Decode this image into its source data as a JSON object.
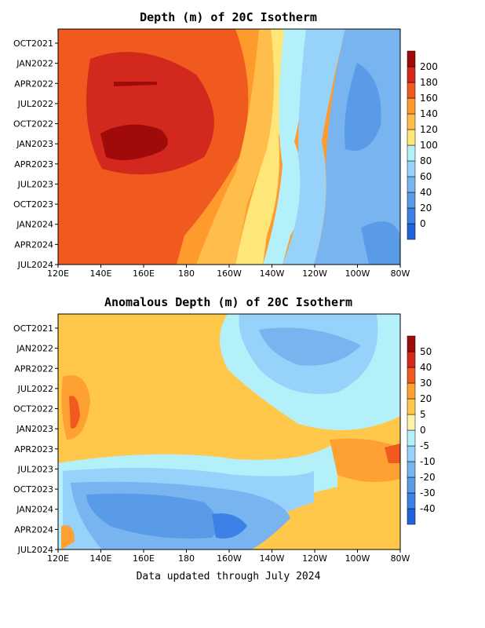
{
  "footer": "Data updated through July 2024",
  "chart_data": [
    {
      "type": "heatmap",
      "title": "Depth (m) of 20C Isotherm",
      "xlabel": "",
      "ylabel": "",
      "x_ticks": [
        "120E",
        "140E",
        "160E",
        "180",
        "160W",
        "140W",
        "120W",
        "100W",
        "80W"
      ],
      "x_range": [
        120,
        280
      ],
      "y_ticks": [
        "OCT2021",
        "JAN2022",
        "APR2022",
        "JUL2022",
        "OCT2022",
        "JAN2023",
        "APR2023",
        "JUL2023",
        "OCT2023",
        "JAN2024",
        "APR2024",
        "JUL2024"
      ],
      "colorbar": {
        "levels": [
          "0",
          "20",
          "40",
          "60",
          "80",
          "100",
          "120",
          "140",
          "160",
          "180",
          "200"
        ],
        "colors": [
          "#1f64dc",
          "#3c82e6",
          "#5a9be8",
          "#78b4f0",
          "#96d2fa",
          "#b4f0fa",
          "#ffe678",
          "#ffbe4b",
          "#ff9a2d",
          "#f05a1e",
          "#d2281e",
          "#a00a0a"
        ]
      }
    },
    {
      "type": "heatmap",
      "title": "Anomalous Depth (m) of 20C Isotherm",
      "xlabel": "",
      "ylabel": "",
      "x_ticks": [
        "120E",
        "140E",
        "160E",
        "180",
        "160W",
        "140W",
        "120W",
        "100W",
        "80W"
      ],
      "x_range": [
        120,
        280
      ],
      "y_ticks": [
        "OCT2021",
        "JAN2022",
        "APR2022",
        "JUL2022",
        "OCT2022",
        "JAN2023",
        "APR2023",
        "JUL2023",
        "OCT2023",
        "JAN2024",
        "APR2024",
        "JUL2024"
      ],
      "colorbar": {
        "levels": [
          "-40",
          "-30",
          "-20",
          "-10",
          "-5",
          "0",
          "5",
          "20",
          "30",
          "40",
          "50"
        ],
        "colors": [
          "#1f64dc",
          "#3c82e6",
          "#5a9be8",
          "#78b4f0",
          "#96d2fa",
          "#b4f0fa",
          "#fff0aa",
          "#ffc84b",
          "#ffa032",
          "#f05a1e",
          "#d2281e",
          "#a00a0a"
        ]
      }
    }
  ]
}
